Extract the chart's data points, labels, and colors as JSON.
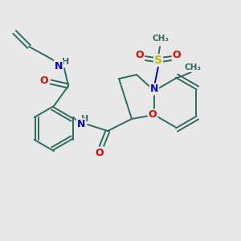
{
  "background_color": "#e8e8e8",
  "bond_color": "#2d6b5e",
  "N_color": "#0000cc",
  "O_color": "#dd0000",
  "S_color": "#bbbb00",
  "figsize": [
    3.0,
    3.0
  ],
  "dpi": 100,
  "xlim": [
    0,
    300
  ],
  "ylim": [
    0,
    300
  ]
}
